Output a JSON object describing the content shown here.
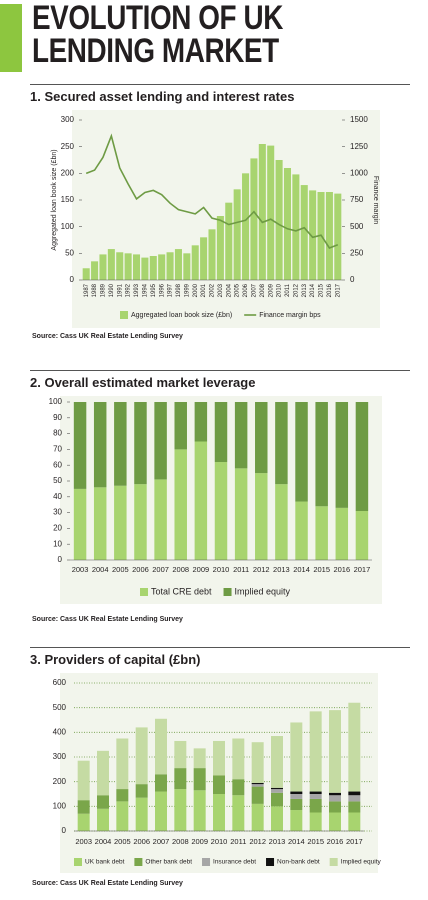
{
  "header": {
    "title": "EVOLUTION OF UK LENDING MARKET"
  },
  "chart_data": [
    {
      "type": "combo",
      "title": "1. Secured asset lending and interest rates",
      "categories": [
        "1987",
        "1988",
        "1989",
        "1990",
        "1991",
        "1992",
        "1993",
        "1994",
        "1995",
        "1996",
        "1997",
        "1998",
        "1999",
        "2000",
        "2001",
        "2002",
        "2003",
        "2004",
        "2005",
        "2006",
        "2007",
        "2008",
        "2009",
        "2010",
        "2011",
        "2012",
        "2013",
        "2014",
        "2015",
        "2016",
        "2017"
      ],
      "series": [
        {
          "name": "Aggregated loan book size (£bn)",
          "type": "bar",
          "color": "#a8d46f",
          "values": [
            22,
            35,
            48,
            58,
            52,
            50,
            48,
            42,
            45,
            48,
            52,
            58,
            50,
            65,
            80,
            95,
            120,
            145,
            170,
            200,
            228,
            255,
            252,
            225,
            210,
            198,
            178,
            168,
            165,
            165,
            162
          ]
        },
        {
          "name": "Finance margin bps",
          "type": "line",
          "axis": "y2",
          "color": "#6e9b44",
          "values": [
            1000,
            1030,
            1150,
            1350,
            1050,
            900,
            760,
            820,
            840,
            800,
            720,
            660,
            640,
            620,
            680,
            580,
            560,
            520,
            540,
            560,
            640,
            540,
            570,
            520,
            480,
            460,
            490,
            400,
            420,
            300,
            330
          ]
        }
      ],
      "y_label": "Aggregated loan book size (£bn)",
      "y2_label": "Finance margin",
      "ylim": [
        0,
        300
      ],
      "yticks": [
        0,
        50,
        100,
        150,
        200,
        250,
        300
      ],
      "y2lim": [
        0,
        1500
      ],
      "y2ticks": [
        0,
        250,
        500,
        750,
        1000,
        1250,
        1500
      ],
      "grid": false,
      "source": "Source: Cass UK Real Estate Lending Survey"
    },
    {
      "type": "stacked-bar",
      "title": "2. Overall estimated market leverage",
      "categories": [
        "2003",
        "2004",
        "2005",
        "2006",
        "2007",
        "2008",
        "2009",
        "2010",
        "2011",
        "2012",
        "2013",
        "2014",
        "2015",
        "2016",
        "2017"
      ],
      "series": [
        {
          "name": "Total CRE debt",
          "color": "#a8d46f",
          "values": [
            45,
            46,
            47,
            48,
            51,
            70,
            75,
            62,
            58,
            55,
            48,
            37,
            34,
            33,
            31
          ]
        },
        {
          "name": "Implied equity",
          "color": "#6e9b44",
          "values": [
            55,
            54,
            53,
            52,
            49,
            30,
            25,
            38,
            42,
            45,
            52,
            63,
            66,
            67,
            69
          ]
        }
      ],
      "ylim": [
        0,
        100
      ],
      "yticks": [
        0,
        10,
        20,
        30,
        40,
        50,
        60,
        70,
        80,
        90,
        100
      ],
      "grid": false,
      "source": "Source: Cass UK Real Estate Lending Survey"
    },
    {
      "type": "stacked-bar",
      "title": "3. Providers of capital (£bn)",
      "categories": [
        "2003",
        "2004",
        "2005",
        "2006",
        "2007",
        "2008",
        "2009",
        "2010",
        "2011",
        "2012",
        "2013",
        "2014",
        "2015",
        "2016",
        "2017"
      ],
      "series": [
        {
          "name": "UK bank debt",
          "color": "#a8d46f",
          "values": [
            70,
            90,
            120,
            135,
            160,
            170,
            165,
            150,
            145,
            110,
            100,
            85,
            75,
            75,
            75
          ]
        },
        {
          "name": "Other bank debt",
          "color": "#7aa64a",
          "values": [
            55,
            55,
            50,
            55,
            70,
            85,
            90,
            75,
            65,
            70,
            55,
            45,
            55,
            45,
            45
          ]
        },
        {
          "name": "Insurance debt",
          "color": "#a6a6a6",
          "values": [
            0,
            0,
            0,
            0,
            0,
            0,
            0,
            0,
            0,
            10,
            15,
            20,
            20,
            25,
            25
          ]
        },
        {
          "name": "Non-bank debt",
          "color": "#111111",
          "values": [
            0,
            0,
            0,
            0,
            0,
            0,
            0,
            0,
            0,
            5,
            5,
            10,
            10,
            10,
            15
          ]
        },
        {
          "name": "Implied equity",
          "color": "#c5dba3",
          "values": [
            160,
            180,
            205,
            230,
            225,
            110,
            80,
            140,
            165,
            165,
            210,
            280,
            325,
            335,
            360
          ]
        }
      ],
      "ylim": [
        0,
        600
      ],
      "yticks": [
        0,
        100,
        200,
        300,
        400,
        500,
        600
      ],
      "grid": true,
      "source": "Source: Cass UK Real Estate Lending Survey"
    }
  ]
}
